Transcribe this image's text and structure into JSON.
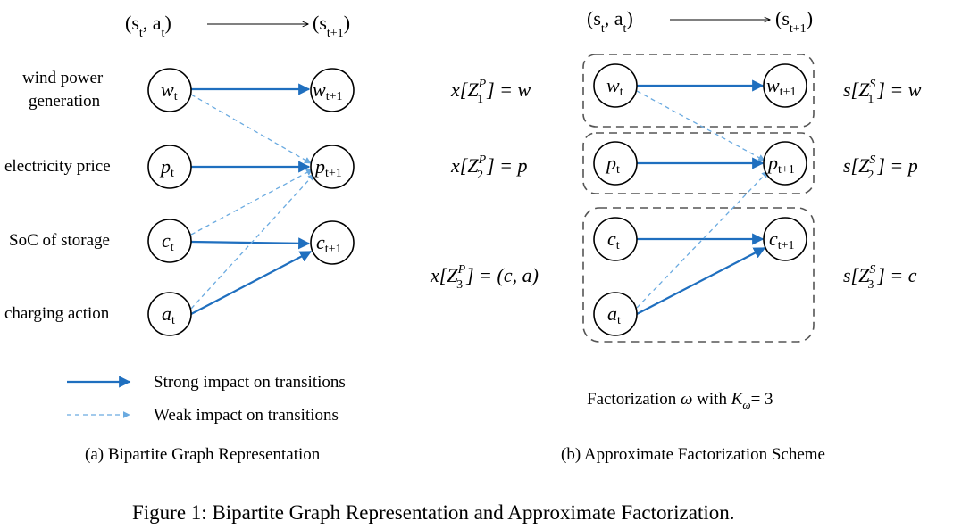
{
  "header": {
    "left": "(s",
    "state_sub": "t",
    "comma_a": ", a",
    "close": ")",
    "right": "(s",
    "next_sub": "t+1"
  },
  "variables": [
    {
      "id": "w",
      "label": "wind power generation",
      "label_lines": [
        "wind power",
        "generation"
      ],
      "symbol": "w"
    },
    {
      "id": "p",
      "label": "electricity price",
      "label_lines": [
        "electricity price"
      ],
      "symbol": "p"
    },
    {
      "id": "c",
      "label": "SoC of storage",
      "label_lines": [
        "SoC of storage"
      ],
      "symbol": "c"
    },
    {
      "id": "a",
      "label": "charging action",
      "label_lines": [
        "charging action"
      ],
      "symbol": "a"
    }
  ],
  "subscripts": {
    "t": "t",
    "t1": "t+1"
  },
  "legend": {
    "strong": "Strong impact on transitions",
    "weak": "Weak impact on transitions",
    "strong_color": "#1f6fbf",
    "weak_color": "#6aaae0"
  },
  "edges": {
    "strong": [
      [
        "w",
        "w"
      ],
      [
        "p",
        "p"
      ],
      [
        "c",
        "c"
      ],
      [
        "a",
        "c"
      ]
    ],
    "weak": [
      [
        "w",
        "p"
      ],
      [
        "c",
        "p"
      ],
      [
        "a",
        "p"
      ]
    ]
  },
  "factorization": {
    "groups": [
      {
        "x_lhs": "x[Z",
        "x_sub": "1",
        "x_sup": "P",
        "x_rhs": "] = w",
        "s_lhs": "s[Z",
        "s_sub": "1",
        "s_sup": "S",
        "s_rhs": "] = w"
      },
      {
        "x_lhs": "x[Z",
        "x_sub": "2",
        "x_sup": "P",
        "x_rhs": "] = p",
        "s_lhs": "s[Z",
        "s_sub": "2",
        "s_sup": "S",
        "s_rhs": "] = p"
      },
      {
        "x_lhs": "x[Z",
        "x_sub": "3",
        "x_sup": "P",
        "x_rhs": "] = (c, a)",
        "s_lhs": "s[Z",
        "s_sub": "3",
        "s_sup": "S",
        "s_rhs": "] = c"
      }
    ],
    "caption_prefix": "Factorization ",
    "omega": "ω",
    "caption_mid": " with ",
    "K": "K",
    "caption_suffix": "= 3"
  },
  "captions": {
    "a": "(a)  Bipartite Graph Representation",
    "b": "(b)  Approximate Factorization Scheme",
    "figure": "Figure 1: Bipartite Graph Representation and Approximate Factorization."
  }
}
